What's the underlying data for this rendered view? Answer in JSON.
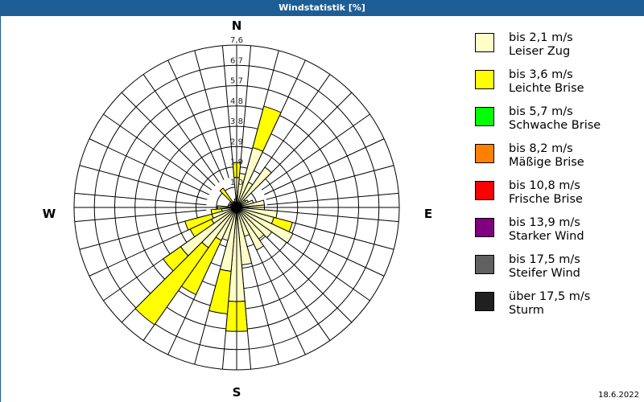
{
  "window": {
    "title": "Windstatistik [%]"
  },
  "footer": {
    "date": "18.6.2022"
  },
  "compass": {
    "n": "N",
    "e": "E",
    "s": "S",
    "w": "W"
  },
  "legend": {
    "items": [
      {
        "range": "bis 2,1 m/s",
        "name": "Leiser Zug",
        "color": "#ffffc8"
      },
      {
        "range": "bis 3,6 m/s",
        "name": "Leichte Brise",
        "color": "#ffff00"
      },
      {
        "range": "bis 5,7 m/s",
        "name": "Schwache Brise",
        "color": "#00ff00"
      },
      {
        "range": "bis 8,2 m/s",
        "name": "Mäßige Brise",
        "color": "#ff8000"
      },
      {
        "range": "bis 10,8 m/s",
        "name": "Frische Brise",
        "color": "#ff0000"
      },
      {
        "range": "bis 13,9 m/s",
        "name": "Starker Wind",
        "color": "#800080"
      },
      {
        "range": "bis 17,5 m/s",
        "name": "Steifer Wind",
        "color": "#606060"
      },
      {
        "range": "über 17,5 m/s",
        "name": "Sturm",
        "color": "#202020"
      }
    ]
  },
  "chart_data": {
    "type": "wind-rose",
    "title": "Windstatistik [%]",
    "ring_labels": [
      "1,0",
      "1,9",
      "2,9",
      "3,8",
      "4,8",
      "5,7",
      "6,7",
      "7,6"
    ],
    "rmax": 7.6,
    "directions_deg": [
      0,
      10,
      20,
      30,
      40,
      50,
      60,
      70,
      80,
      90,
      100,
      110,
      120,
      130,
      140,
      150,
      160,
      170,
      180,
      190,
      200,
      210,
      220,
      230,
      240,
      250,
      260,
      270,
      280,
      290,
      300,
      310,
      320,
      330,
      340,
      350
    ],
    "series": [
      {
        "name": "bis 2,1 m/s",
        "values": [
          1.4,
          1.6,
          2.9,
          1.3,
          2.3,
          0.5,
          0.6,
          0.8,
          1.3,
          1.3,
          1.9,
          1.8,
          2.9,
          2.0,
          1.8,
          2.2,
          1.4,
          2.7,
          4.4,
          3.0,
          1.6,
          1.7,
          2.3,
          3.2,
          1.3,
          1.2,
          0.7,
          0.9,
          0.4,
          0.4,
          0.3,
          0.4,
          0.2,
          0.3,
          0.3,
          0.2
        ]
      },
      {
        "name": "bis 3,6 m/s",
        "values": [
          0.7,
          0.0,
          2.0,
          0.0,
          0.0,
          0.0,
          0.0,
          0.0,
          0.0,
          0.0,
          0.0,
          0.9,
          0.0,
          0.0,
          0.0,
          0.0,
          0.0,
          0.0,
          1.4,
          2.0,
          0.0,
          2.8,
          4.4,
          1.0,
          1.1,
          1.3,
          0.5,
          0.0,
          0.0,
          0.0,
          0.0,
          0.0,
          0.9,
          0.0,
          0.0,
          0.2
        ]
      }
    ]
  }
}
